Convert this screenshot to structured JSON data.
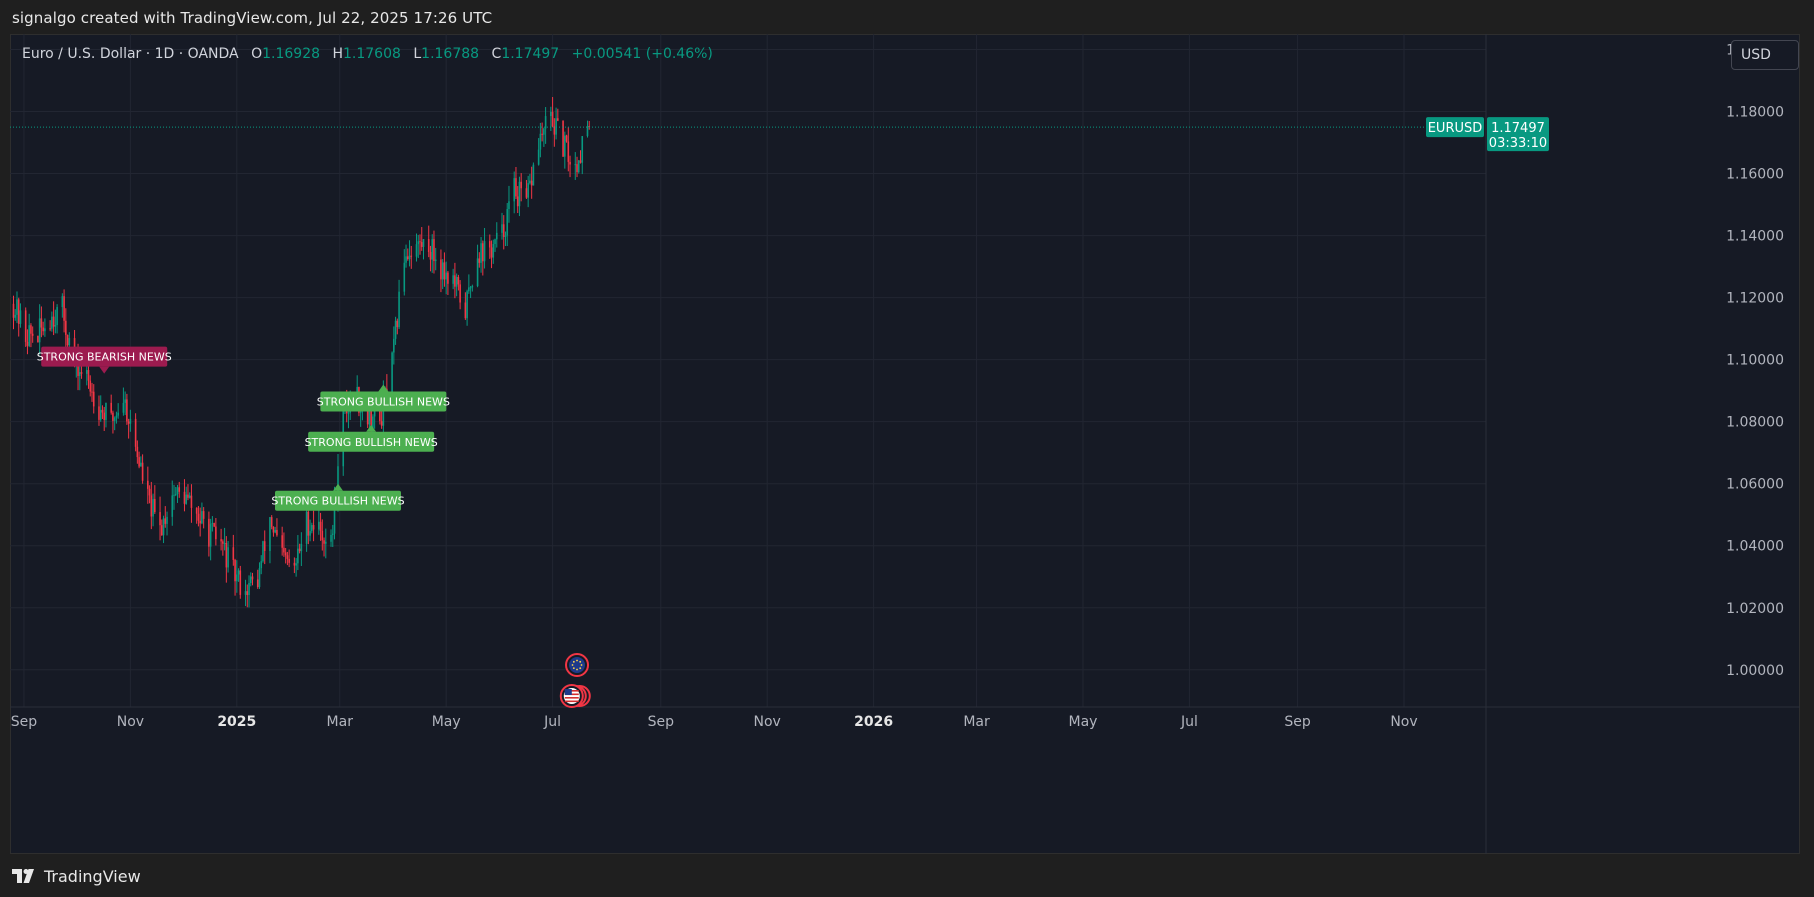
{
  "header": {
    "caption": "signalgo created with TradingView.com, Jul 22, 2025 17:26 UTC"
  },
  "legend": {
    "title": "Euro / U.S. Dollar · 1D · OANDA",
    "open_label": "O",
    "open": "1.16928",
    "high_label": "H",
    "high": "1.17608",
    "low_label": "L",
    "low": "1.16788",
    "close_label": "C",
    "close": "1.17497",
    "change": "+0.00541 (+0.46%)"
  },
  "currency_button": {
    "label": "USD"
  },
  "footer": {
    "brand": "TradingView",
    "logo_icon": "tradingview-logo-icon"
  },
  "colors": {
    "background": "#161a25",
    "grid": "#222632",
    "up": "#089981",
    "down": "#f23645",
    "bullish_label": "#4caf50",
    "bearish_label": "#9c1b4f",
    "price_line": "#089981"
  },
  "chart_data": {
    "type": "candlestick",
    "symbol": "EURUSD",
    "timeframe": "1D",
    "last_price": "1.17497",
    "countdown": "03:33:10",
    "ylim": [
      0.988,
      1.205
    ],
    "y_ticks": [
      "1.20000",
      "1.18000",
      "1.16000",
      "1.14000",
      "1.12000",
      "1.10000",
      "1.08000",
      "1.06000",
      "1.04000",
      "1.02000",
      "1.00000"
    ],
    "x_ticks": [
      {
        "label": "Sep",
        "date": "2024-09-01",
        "bold": false
      },
      {
        "label": "Nov",
        "date": "2024-11-01",
        "bold": false
      },
      {
        "label": "2025",
        "date": "2025-01-01",
        "bold": true
      },
      {
        "label": "Mar",
        "date": "2025-03-01",
        "bold": false
      },
      {
        "label": "May",
        "date": "2025-05-01",
        "bold": false
      },
      {
        "label": "Jul",
        "date": "2025-07-01",
        "bold": false
      },
      {
        "label": "Sep",
        "date": "2025-09-01",
        "bold": false
      },
      {
        "label": "Nov",
        "date": "2025-11-01",
        "bold": false
      },
      {
        "label": "2026",
        "date": "2026-01-01",
        "bold": true
      },
      {
        "label": "Mar",
        "date": "2026-03-01",
        "bold": false
      },
      {
        "label": "May",
        "date": "2026-05-01",
        "bold": false
      },
      {
        "label": "Jul",
        "date": "2026-07-01",
        "bold": false
      },
      {
        "label": "Sep",
        "date": "2026-09-01",
        "bold": false
      },
      {
        "label": "Nov",
        "date": "2026-11-01",
        "bold": false
      }
    ],
    "xlim": [
      "2024-08-24",
      "2026-12-18"
    ],
    "weekly_path": [
      [
        "2024-08-26",
        1.118
      ],
      [
        "2024-09-02",
        1.108
      ],
      [
        "2024-09-09",
        1.108
      ],
      [
        "2024-09-16",
        1.114
      ],
      [
        "2024-09-23",
        1.116
      ],
      [
        "2024-09-30",
        1.098
      ],
      [
        "2024-10-07",
        1.094
      ],
      [
        "2024-10-14",
        1.085
      ],
      [
        "2024-10-21",
        1.08
      ],
      [
        "2024-10-28",
        1.088
      ],
      [
        "2024-11-04",
        1.072
      ],
      [
        "2024-11-11",
        1.055
      ],
      [
        "2024-11-18",
        1.045
      ],
      [
        "2024-11-25",
        1.057
      ],
      [
        "2024-12-02",
        1.056
      ],
      [
        "2024-12-09",
        1.05
      ],
      [
        "2024-12-16",
        1.044
      ],
      [
        "2024-12-23",
        1.041
      ],
      [
        "2024-12-30",
        1.031
      ],
      [
        "2025-01-06",
        1.026
      ],
      [
        "2025-01-13",
        1.029
      ],
      [
        "2025-01-20",
        1.049
      ],
      [
        "2025-01-27",
        1.036
      ],
      [
        "2025-02-03",
        1.032
      ],
      [
        "2025-02-10",
        1.048
      ],
      [
        "2025-02-17",
        1.046
      ],
      [
        "2025-02-24",
        1.04
      ],
      [
        "2025-03-03",
        1.082
      ],
      [
        "2025-03-10",
        1.089
      ],
      [
        "2025-03-17",
        1.083
      ],
      [
        "2025-03-24",
        1.08
      ],
      [
        "2025-03-31",
        1.098
      ],
      [
        "2025-04-07",
        1.134
      ],
      [
        "2025-04-14",
        1.137
      ],
      [
        "2025-04-21",
        1.137
      ],
      [
        "2025-04-28",
        1.13
      ],
      [
        "2025-05-05",
        1.125
      ],
      [
        "2025-05-12",
        1.116
      ],
      [
        "2025-05-19",
        1.135
      ],
      [
        "2025-05-26",
        1.135
      ],
      [
        "2025-06-02",
        1.14
      ],
      [
        "2025-06-09",
        1.155
      ],
      [
        "2025-06-16",
        1.15
      ],
      [
        "2025-06-23",
        1.17
      ],
      [
        "2025-06-30",
        1.178
      ],
      [
        "2025-07-07",
        1.169
      ],
      [
        "2025-07-14",
        1.162
      ],
      [
        "2025-07-21",
        1.175
      ]
    ],
    "annotations": [
      {
        "text": "STRONG BEARISH NEWS",
        "date": "2024-10-17",
        "price": 1.0955,
        "kind": "bearish"
      },
      {
        "text": "STRONG BULLISH NEWS",
        "date": "2025-03-26",
        "price": 1.092,
        "kind": "bullish"
      },
      {
        "text": "STRONG BULLISH NEWS",
        "date": "2025-03-19",
        "price": 1.079,
        "kind": "bullish"
      },
      {
        "text": "STRONG BULLISH NEWS",
        "date": "2025-02-28",
        "price": 1.06,
        "kind": "bullish"
      }
    ],
    "event_markers": [
      {
        "date": "2025-07-15",
        "icon": "eu-flag-icon"
      },
      {
        "date": "2025-07-12",
        "icon": "us-flag-icon"
      }
    ]
  }
}
